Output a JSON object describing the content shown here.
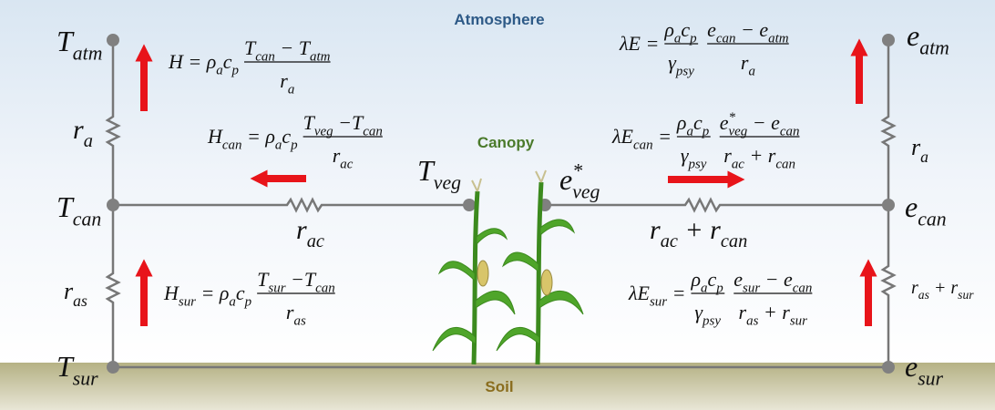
{
  "regions": {
    "atmosphere": "Atmosphere",
    "canopy": "Canopy",
    "soil": "Soil"
  },
  "nodes": [
    [
      {
        "t": "T",
        "sub": "atm"
      }
    ],
    [
      {
        "t": "T",
        "sub": "can"
      }
    ],
    [
      {
        "t": "T",
        "sub": "sur"
      }
    ],
    [
      {
        "t": "T",
        "sub": "veg"
      }
    ],
    [
      {
        "t": "e",
        "sub": "atm"
      }
    ],
    [
      {
        "t": "e",
        "sub": "can"
      }
    ],
    [
      {
        "t": "e",
        "sub": "sur"
      }
    ],
    [
      {
        "t": "e",
        "sup": "*",
        "sub": "veg"
      }
    ]
  ],
  "resistances": [
    [
      {
        "t": "r",
        "sub": "a"
      }
    ],
    [
      {
        "t": "r",
        "sub": "as"
      }
    ],
    [
      {
        "t": "r",
        "sub": "ac"
      }
    ],
    [
      {
        "t": "r",
        "sub": "ac"
      },
      {
        "t": " + r",
        "sub": "can"
      }
    ],
    [
      {
        "t": "r",
        "sub": "a"
      }
    ],
    [
      {
        "t": "r",
        "sub": "as"
      },
      {
        "t": " + r",
        "sub": "sur"
      }
    ]
  ],
  "equations": [
    {
      "terms": [
        {
          "inline": [
            {
              "t": "H"
            },
            {
              "t": "  = ρ",
              "sub": "a"
            },
            {
              "t": "c",
              "sub": "p"
            }
          ]
        },
        {
          "num": [
            {
              "t": "T",
              "sub": "can"
            },
            {
              "t": " − T",
              "sub": "atm"
            }
          ],
          "den": [
            {
              "t": "r",
              "sub": "a"
            }
          ]
        }
      ]
    },
    {
      "terms": [
        {
          "inline": [
            {
              "t": "H",
              "sub": "can"
            },
            {
              "t": " = ρ",
              "sub": "a"
            },
            {
              "t": "c",
              "sub": "p"
            }
          ]
        },
        {
          "num": [
            {
              "t": "T",
              "sub": "veg"
            },
            {
              "t": " −T",
              "sub": "can"
            }
          ],
          "den": [
            {
              "t": "r",
              "sub": "ac"
            }
          ]
        }
      ]
    },
    {
      "terms": [
        {
          "inline": [
            {
              "t": "H",
              "sub": "sur"
            },
            {
              "t": " = ρ",
              "sub": "a"
            },
            {
              "t": "c",
              "sub": "p"
            }
          ]
        },
        {
          "num": [
            {
              "t": "T",
              "sub": "sur"
            },
            {
              "t": " −T",
              "sub": "can"
            }
          ],
          "den": [
            {
              "t": "r",
              "sub": "as"
            }
          ]
        }
      ]
    },
    {
      "terms": [
        {
          "inline": [
            {
              "t": "λE ="
            }
          ]
        },
        {
          "num": [
            {
              "t": "ρ",
              "sub": "a"
            },
            {
              "t": "c",
              "sub": "p"
            }
          ],
          "den": [
            {
              "t": "γ",
              "sub": "psy"
            }
          ]
        },
        {
          "num": [
            {
              "t": "e",
              "sub": "can"
            },
            {
              "t": " − e",
              "sub": "atm"
            }
          ],
          "den": [
            {
              "t": "r",
              "sub": "a"
            }
          ]
        }
      ]
    },
    {
      "terms": [
        {
          "inline": [
            {
              "t": "λE",
              "sub": "can"
            },
            {
              "t": " ="
            }
          ]
        },
        {
          "num": [
            {
              "t": "ρ",
              "sub": "a"
            },
            {
              "t": "c",
              "sub": "p"
            }
          ],
          "den": [
            {
              "t": "γ",
              "sub": "psy"
            }
          ]
        },
        {
          "num": [
            {
              "t": "e",
              "sup": "*",
              "sub": "veg"
            },
            {
              "t": " − e",
              "sub": "can"
            }
          ],
          "den": [
            {
              "t": "r",
              "sub": "ac"
            },
            {
              "t": " + r",
              "sub": "can"
            }
          ]
        }
      ]
    },
    {
      "terms": [
        {
          "inline": [
            {
              "t": "λE",
              "sub": "sur"
            },
            {
              "t": " ="
            }
          ]
        },
        {
          "num": [
            {
              "t": "ρ",
              "sub": "a"
            },
            {
              "t": "c",
              "sub": "p"
            }
          ],
          "den": [
            {
              "t": "γ",
              "sub": "psy"
            }
          ]
        },
        {
          "num": [
            {
              "t": "e",
              "sub": "sur"
            },
            {
              "t": " − e",
              "sub": "can"
            }
          ],
          "den": [
            {
              "t": "r",
              "sub": "as"
            },
            {
              "t": " + r",
              "sub": "sur"
            }
          ]
        }
      ]
    }
  ]
}
